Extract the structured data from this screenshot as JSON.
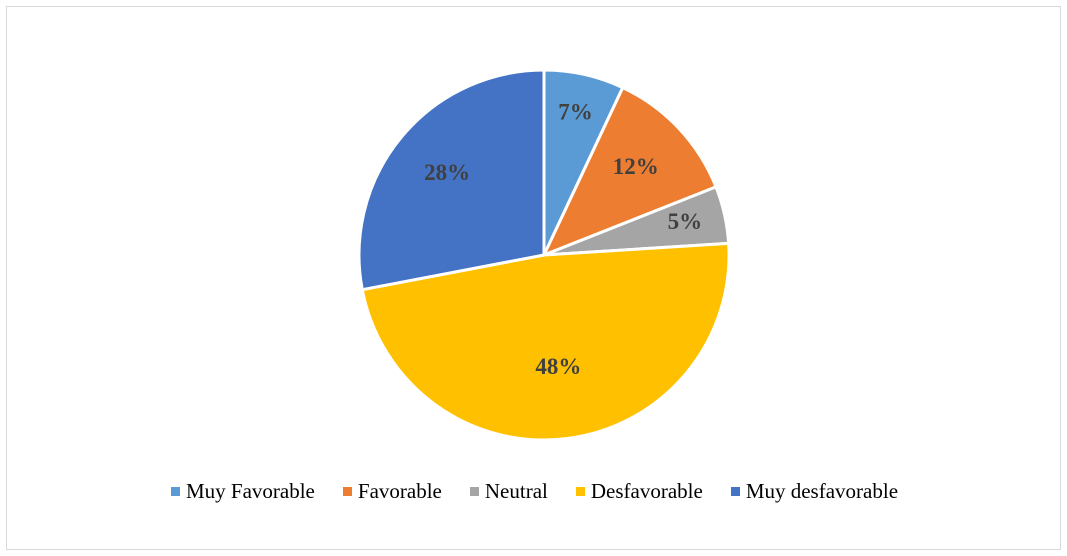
{
  "chart_data": {
    "type": "pie",
    "title": "",
    "categories": [
      "Muy Favorable",
      "Favorable",
      "Neutral",
      "Desfavorable",
      "Muy desfavorable"
    ],
    "values": [
      7,
      12,
      5,
      48,
      28
    ],
    "labels": [
      "7%",
      "12%",
      "5%",
      "48%",
      "28%"
    ],
    "colors": [
      "#5B9BD5",
      "#ED7D31",
      "#A5A5A5",
      "#FFC000",
      "#4472C4"
    ],
    "start_angle": "12 o'clock",
    "direction": "clockwise",
    "legend_position": "bottom"
  }
}
